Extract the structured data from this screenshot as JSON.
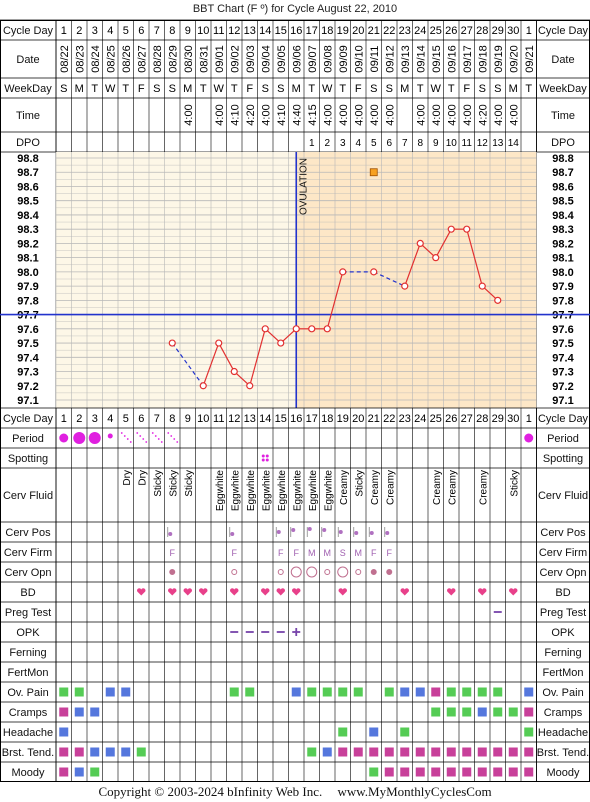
{
  "chart_title": "BBT Chart (F º) for Cycle August 22, 2010",
  "copyright": "Copyright © 2003-2024 bInfinity Web Inc.",
  "website": "www.MyMonthlyCyclesCom",
  "row_labels": {
    "cycle_day": "Cycle Day",
    "date": "Date",
    "weekday": "WeekDay",
    "time": "Time",
    "dpo": "DPO",
    "period": "Period",
    "spotting": "Spotting",
    "cerv_fluid": "Cerv Fluid",
    "cerv_pos": "Cerv Pos",
    "cerv_firm": "Cerv Firm",
    "cerv_opn": "Cerv Opn",
    "bd": "BD",
    "preg_test": "Preg Test",
    "opk": "OPK",
    "ferning": "Ferning",
    "fertmon": "FertMon",
    "ov_pain": "Ov. Pain",
    "cramps": "Cramps",
    "headache": "Headache",
    "brst_tend": "Brst. Tend.",
    "moody": "Moody"
  },
  "cycle_days": [
    "1",
    "2",
    "3",
    "4",
    "5",
    "6",
    "7",
    "8",
    "9",
    "10",
    "11",
    "12",
    "13",
    "14",
    "15",
    "16",
    "17",
    "18",
    "19",
    "20",
    "21",
    "22",
    "23",
    "24",
    "25",
    "26",
    "27",
    "28",
    "29",
    "30",
    "1"
  ],
  "dates": [
    "08/22",
    "08/23",
    "08/24",
    "08/25",
    "08/26",
    "08/27",
    "08/28",
    "08/29",
    "08/30",
    "08/31",
    "09/01",
    "09/02",
    "09/03",
    "09/04",
    "09/05",
    "09/06",
    "09/07",
    "09/08",
    "09/09",
    "09/10",
    "09/11",
    "09/12",
    "09/13",
    "09/14",
    "09/15",
    "09/16",
    "09/17",
    "09/18",
    "09/19",
    "09/20",
    "09/21"
  ],
  "weekdays": [
    "S",
    "M",
    "T",
    "W",
    "T",
    "F",
    "S",
    "S",
    "M",
    "T",
    "W",
    "T",
    "F",
    "S",
    "S",
    "M",
    "T",
    "W",
    "T",
    "F",
    "S",
    "S",
    "M",
    "T",
    "W",
    "T",
    "F",
    "S",
    "S",
    "M",
    "T"
  ],
  "times": [
    "",
    "",
    "",
    "",
    "",
    "",
    "",
    "",
    "4:00",
    "",
    "4:00",
    "4:10",
    "4:20",
    "4:00",
    "4:10",
    "4:40",
    "4:15",
    "4:00",
    "4:00",
    "4:00",
    "4:00",
    "4:00",
    "",
    "4:00",
    "4:00",
    "4:00",
    "4:00",
    "4:20",
    "4:00",
    "4:00",
    ""
  ],
  "dpo": [
    "",
    "",
    "",
    "",
    "",
    "",
    "",
    "",
    "",
    "",
    "",
    "",
    "",
    "",
    "",
    "",
    "1",
    "2",
    "3",
    "4",
    "5",
    "6",
    "7",
    "8",
    "9",
    "10",
    "11",
    "12",
    "13",
    "14",
    ""
  ],
  "temp_axis_labels": [
    "98.8",
    "98.7",
    "98.6",
    "98.5",
    "98.4",
    "98.3",
    "98.2",
    "98.1",
    "98.0",
    "97.9",
    "97.8",
    "97.7",
    "97.6",
    "97.5",
    "97.4",
    "97.3",
    "97.2",
    "97.1"
  ],
  "ovulation_label": "OVULATION",
  "cerv_fluid": [
    "",
    "",
    "",
    "",
    "Dry",
    "Dry",
    "Sticky",
    "Sticky",
    "Sticky",
    "",
    "Eggwhite",
    "Eggwhite",
    "Eggwhite",
    "Eggwhite",
    "Eggwhite",
    "Eggwhite",
    "Eggwhite",
    "Eggwhite",
    "Creamy",
    "Sticky",
    "Creamy",
    "Creamy",
    "",
    "",
    "Creamy",
    "Creamy",
    "",
    "Creamy",
    "",
    "Sticky",
    ""
  ],
  "cerv_firm": [
    "",
    "",
    "",
    "",
    "",
    "",
    "",
    "F",
    "",
    "",
    "",
    "F",
    "",
    "",
    "F",
    "F",
    "M",
    "M",
    "S",
    "M",
    "F",
    "F",
    "",
    "",
    "",
    "",
    "",
    "",
    "",
    "",
    ""
  ],
  "chart_data": {
    "type": "line",
    "title": "BBT Chart (F º) for Cycle August 22, 2010",
    "xlabel": "Cycle Day",
    "ylabel": "",
    "ylim": [
      97.1,
      98.8
    ],
    "grid": true,
    "coverline": 97.7,
    "ovulation_day": 16,
    "x": [
      8,
      9,
      10,
      11,
      12,
      13,
      14,
      15,
      16,
      17,
      18,
      19,
      20,
      21,
      22,
      23,
      24,
      25,
      26,
      27,
      28,
      29,
      30
    ],
    "temps": [
      97.5,
      null,
      97.2,
      97.5,
      97.3,
      97.2,
      97.6,
      97.5,
      97.6,
      97.6,
      97.6,
      98.0,
      null,
      98.0,
      null,
      97.9,
      98.2,
      98.1,
      98.3,
      98.3,
      97.9,
      97.8,
      null
    ],
    "series": [
      {
        "name": "BBT",
        "values": [
          97.5,
          null,
          97.2,
          97.5,
          97.3,
          97.2,
          97.6,
          97.5,
          97.6,
          97.6,
          97.6,
          98.0,
          null,
          98.0,
          null,
          97.9,
          98.2,
          98.1,
          98.3,
          98.3,
          97.9,
          97.8,
          null
        ]
      }
    ],
    "marker_day21": 98.7
  },
  "colors": {
    "grid_line": "#b7b7b7",
    "pre_ov_fill": "#fdf7e7",
    "post_ov_fill": "#fde7c7",
    "temp_line": "#e23030",
    "coverline": "#2233cc",
    "period": "#e020e0",
    "heart": "#e8408a",
    "sq_green": "#55cc55",
    "sq_blue": "#5577dd",
    "sq_magenta": "#c8409a",
    "opk": "#7744aa"
  }
}
